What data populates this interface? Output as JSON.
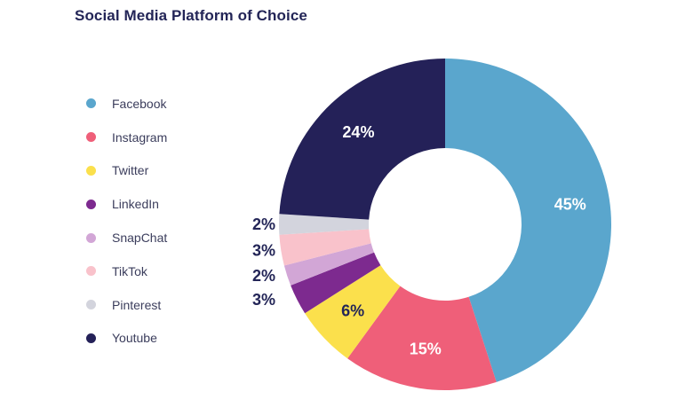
{
  "chart_data": {
    "type": "pie",
    "title": "Social Media Platform of Choice",
    "legend_position": "left",
    "categories": [
      "Facebook",
      "Instagram",
      "Twitter",
      "LinkedIn",
      "SnapChat",
      "TikTok",
      "Pinterest",
      "Youtube"
    ],
    "values": [
      45,
      15,
      6,
      3,
      2,
      3,
      2,
      24
    ],
    "labels": [
      "45%",
      "15%",
      "6%",
      "3%",
      "2%",
      "3%",
      "2%",
      "24%"
    ],
    "colors": [
      "#5aa6cd",
      "#ef5f79",
      "#fbe04c",
      "#7d2a8f",
      "#d2a6d6",
      "#f9c2cb",
      "#d3d4dd",
      "#242158"
    ],
    "label_colors": [
      "#ffffff",
      "#ffffff",
      "#232557",
      "#232557",
      "#232557",
      "#232557",
      "#232557",
      "#ffffff"
    ],
    "donut": true
  }
}
